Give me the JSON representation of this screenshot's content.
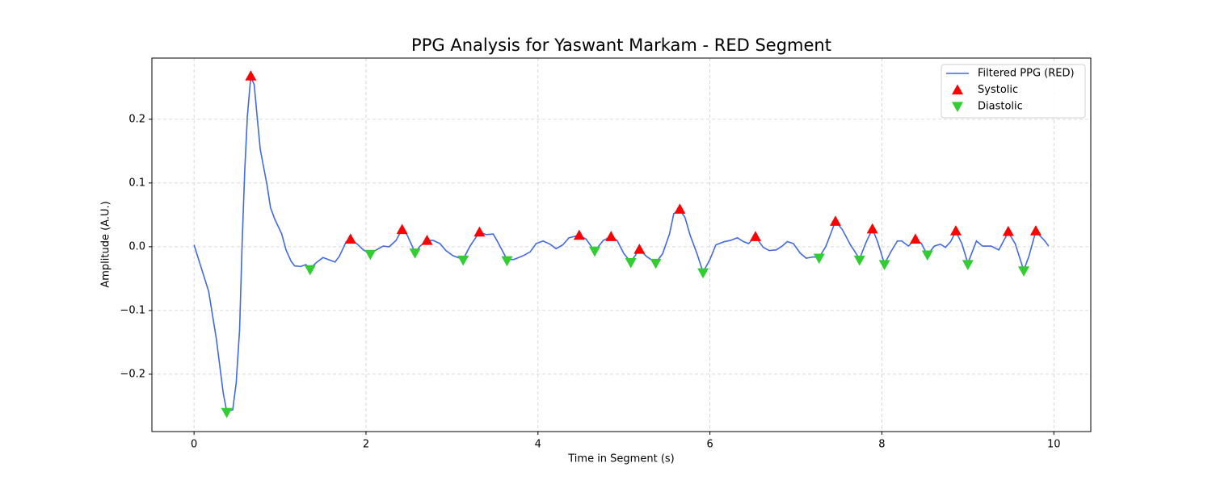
{
  "chart_data": {
    "type": "line",
    "title": "PPG Analysis for Yaswant Markam - RED Segment",
    "xlabel": "Time in Segment (s)",
    "ylabel": "Amplitude (A.U.)",
    "xlim": [
      -0.49,
      10.43
    ],
    "ylim": [
      -0.29,
      0.296
    ],
    "xticks": [
      0,
      2,
      4,
      6,
      8,
      10
    ],
    "yticks": [
      {
        "value": -0.2,
        "label": "−0.2"
      },
      {
        "value": -0.1,
        "label": "−0.1"
      },
      {
        "value": 0,
        "label": "0.0"
      },
      0.1,
      0.2
    ],
    "grid": true,
    "legend": "upper right",
    "series": [
      {
        "name": "Filtered PPG (RED)",
        "color": "#4169e1",
        "style": "line",
        "x": [
          0,
          0.17,
          0.26,
          0.34,
          0.38,
          0.45,
          0.49,
          0.53,
          0.56,
          0.59,
          0.62,
          0.66,
          0.7,
          0.73,
          0.77,
          0.85,
          0.89,
          0.94,
          1.02,
          1.07,
          1.13,
          1.17,
          1.24,
          1.3,
          1.35,
          1.43,
          1.5,
          1.58,
          1.64,
          1.69,
          1.77,
          1.82,
          1.9,
          1.97,
          2.05,
          2.12,
          2.2,
          2.27,
          2.35,
          2.42,
          2.48,
          2.57,
          2.63,
          2.71,
          2.78,
          2.86,
          2.93,
          3.01,
          3.13,
          3.21,
          3.32,
          3.4,
          3.48,
          3.53,
          3.64,
          3.72,
          3.83,
          3.91,
          3.98,
          4.06,
          4.14,
          4.21,
          4.29,
          4.36,
          4.48,
          4.56,
          4.66,
          4.76,
          4.85,
          4.92,
          5.0,
          5.08,
          5.18,
          5.26,
          5.37,
          5.45,
          5.53,
          5.58,
          5.65,
          5.71,
          5.77,
          5.85,
          5.92,
          6.0,
          6.07,
          6.17,
          6.24,
          6.32,
          6.39,
          6.45,
          6.53,
          6.62,
          6.69,
          6.77,
          6.84,
          6.9,
          6.97,
          7.05,
          7.12,
          7.2,
          7.27,
          7.35,
          7.46,
          7.54,
          7.63,
          7.74,
          7.82,
          7.89,
          7.95,
          8.03,
          8.1,
          8.18,
          8.23,
          8.31,
          8.39,
          8.46,
          8.53,
          8.61,
          8.68,
          8.74,
          8.8,
          8.86,
          8.93,
          9.0,
          9.1,
          9.17,
          9.27,
          9.36,
          9.47,
          9.55,
          9.65,
          9.71,
          9.79,
          9.89,
          9.94
        ],
        "values": [
          0.003,
          -0.07,
          -0.145,
          -0.23,
          -0.258,
          -0.256,
          -0.214,
          -0.13,
          0.008,
          0.12,
          0.204,
          0.267,
          0.254,
          0.21,
          0.153,
          0.096,
          0.061,
          0.043,
          0.02,
          -0.005,
          -0.023,
          -0.03,
          -0.031,
          -0.028,
          -0.034,
          -0.024,
          -0.017,
          -0.021,
          -0.024,
          -0.015,
          0.008,
          0.012,
          0.004,
          -0.005,
          -0.011,
          -0.005,
          0.001,
          0.0,
          0.01,
          0.028,
          0.018,
          -0.009,
          0.001,
          0.01,
          0.01,
          0.005,
          -0.006,
          -0.014,
          -0.02,
          0.001,
          0.023,
          0.019,
          0.02,
          0.008,
          -0.02,
          -0.02,
          -0.014,
          -0.008,
          0.005,
          0.009,
          0.004,
          -0.003,
          0.003,
          0.014,
          0.018,
          0.012,
          -0.007,
          0.01,
          0.016,
          0.01,
          -0.011,
          -0.024,
          -0.004,
          -0.015,
          -0.025,
          -0.011,
          0.02,
          0.052,
          0.058,
          0.046,
          0.018,
          -0.011,
          -0.04,
          -0.02,
          0.003,
          0.008,
          0.01,
          0.014,
          0.008,
          0.005,
          0.016,
          -0.001,
          -0.006,
          -0.005,
          0.001,
          0.008,
          0.005,
          -0.01,
          -0.018,
          -0.016,
          -0.017,
          0.001,
          0.04,
          0.027,
          0.004,
          -0.019,
          0.008,
          0.028,
          0.008,
          -0.027,
          -0.009,
          0.009,
          0.009,
          0.001,
          0.012,
          0.005,
          -0.013,
          0.001,
          0.004,
          -0.001,
          0.008,
          0.024,
          0.005,
          -0.026,
          0.009,
          0.001,
          0.001,
          -0.005,
          0.023,
          0.005,
          -0.037,
          -0.015,
          0.024,
          0.01,
          0.001
        ]
      },
      {
        "name": "Systolic",
        "color": "#ff0000",
        "style": "triangle-up",
        "x": [
          0.66,
          1.82,
          2.42,
          2.71,
          3.32,
          4.48,
          4.85,
          5.18,
          5.65,
          6.53,
          7.46,
          7.89,
          8.39,
          8.86,
          9.47,
          9.79
        ],
        "values": [
          0.268,
          0.012,
          0.027,
          0.01,
          0.023,
          0.018,
          0.016,
          -0.004,
          0.059,
          0.016,
          0.04,
          0.028,
          0.012,
          0.025,
          0.024,
          0.025
        ]
      },
      {
        "name": "Diastolic",
        "color": "#32cd32",
        "style": "triangle-down",
        "x": [
          0.38,
          1.35,
          2.05,
          2.57,
          3.13,
          3.64,
          4.66,
          5.08,
          5.37,
          5.92,
          7.27,
          7.74,
          8.03,
          8.53,
          9.0,
          9.65
        ],
        "values": [
          -0.26,
          -0.036,
          -0.012,
          -0.01,
          -0.021,
          -0.022,
          -0.007,
          -0.025,
          -0.026,
          -0.041,
          -0.018,
          -0.021,
          -0.028,
          -0.013,
          -0.028,
          -0.038
        ]
      }
    ]
  }
}
